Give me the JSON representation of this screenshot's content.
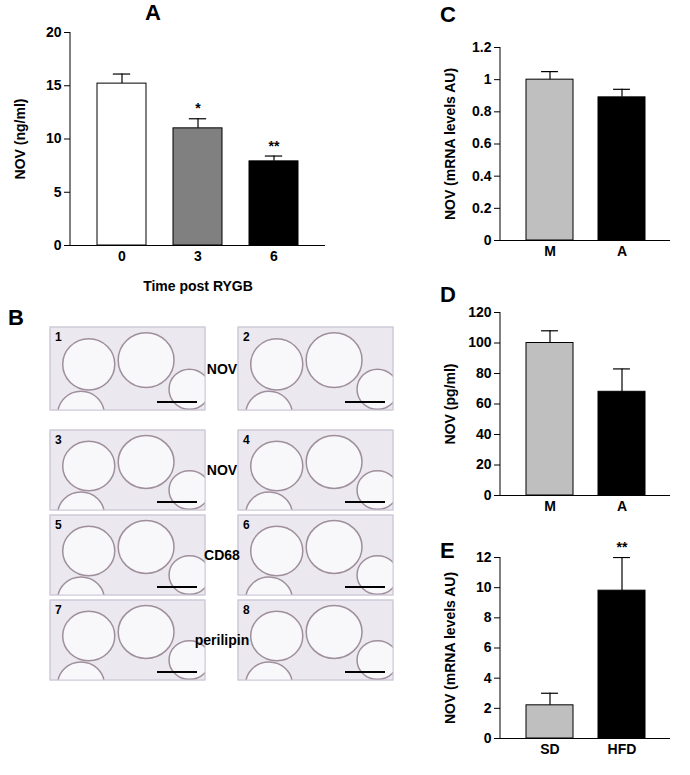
{
  "chart_data": [
    {
      "type": "bar",
      "title": "A",
      "xlabel": "Time post RYGB",
      "ylabel": "NOV (ng/ml)",
      "categories": [
        "0",
        "3",
        "6"
      ],
      "values": [
        15.2,
        11.0,
        7.9
      ],
      "errors": [
        0.9,
        0.9,
        0.5
      ],
      "colors": [
        "#ffffff",
        "#808080",
        "#000000"
      ],
      "ylim": [
        0,
        20
      ],
      "yticks": [
        0,
        5,
        10,
        15,
        20
      ],
      "annotations": [
        {
          "category": "3",
          "text": "*"
        },
        {
          "category": "6",
          "text": "**"
        }
      ]
    },
    {
      "type": "bar",
      "title": "C",
      "ylabel": "NOV (mRNA levels AU)",
      "categories": [
        "M",
        "A"
      ],
      "values": [
        1.0,
        0.89
      ],
      "errors": [
        0.05,
        0.05
      ],
      "colors": [
        "#bfbfbf",
        "#000000"
      ],
      "ylim": [
        0,
        1.2
      ],
      "yticks": [
        0,
        0.2,
        0.4,
        0.6,
        0.8,
        1,
        1.2
      ]
    },
    {
      "type": "bar",
      "title": "D",
      "ylabel": "NOV (pg/ml)",
      "categories": [
        "M",
        "A"
      ],
      "values": [
        100,
        68
      ],
      "errors": [
        8,
        15
      ],
      "colors": [
        "#bfbfbf",
        "#000000"
      ],
      "ylim": [
        0,
        120
      ],
      "yticks": [
        0,
        20,
        40,
        60,
        80,
        100,
        120
      ]
    },
    {
      "type": "bar",
      "title": "E",
      "ylabel": "NOV (mRNA levels AU)",
      "categories": [
        "SD",
        "HFD"
      ],
      "values": [
        2.2,
        9.8
      ],
      "errors": [
        0.8,
        2.2
      ],
      "colors": [
        "#bfbfbf",
        "#000000"
      ],
      "ylim": [
        0,
        12
      ],
      "yticks": [
        0,
        2,
        4,
        6,
        8,
        10,
        12
      ],
      "annotations": [
        {
          "category": "HFD",
          "text": "**"
        }
      ]
    }
  ],
  "panel_B": {
    "title": "B",
    "rows": [
      {
        "label": "NOV",
        "images": [
          "1",
          "2"
        ]
      },
      {
        "label": "NOV",
        "images": [
          "3",
          "4"
        ]
      },
      {
        "label": "CD68",
        "images": [
          "5",
          "6"
        ]
      },
      {
        "label": "perilipin",
        "images": [
          "7",
          "8"
        ]
      }
    ]
  }
}
